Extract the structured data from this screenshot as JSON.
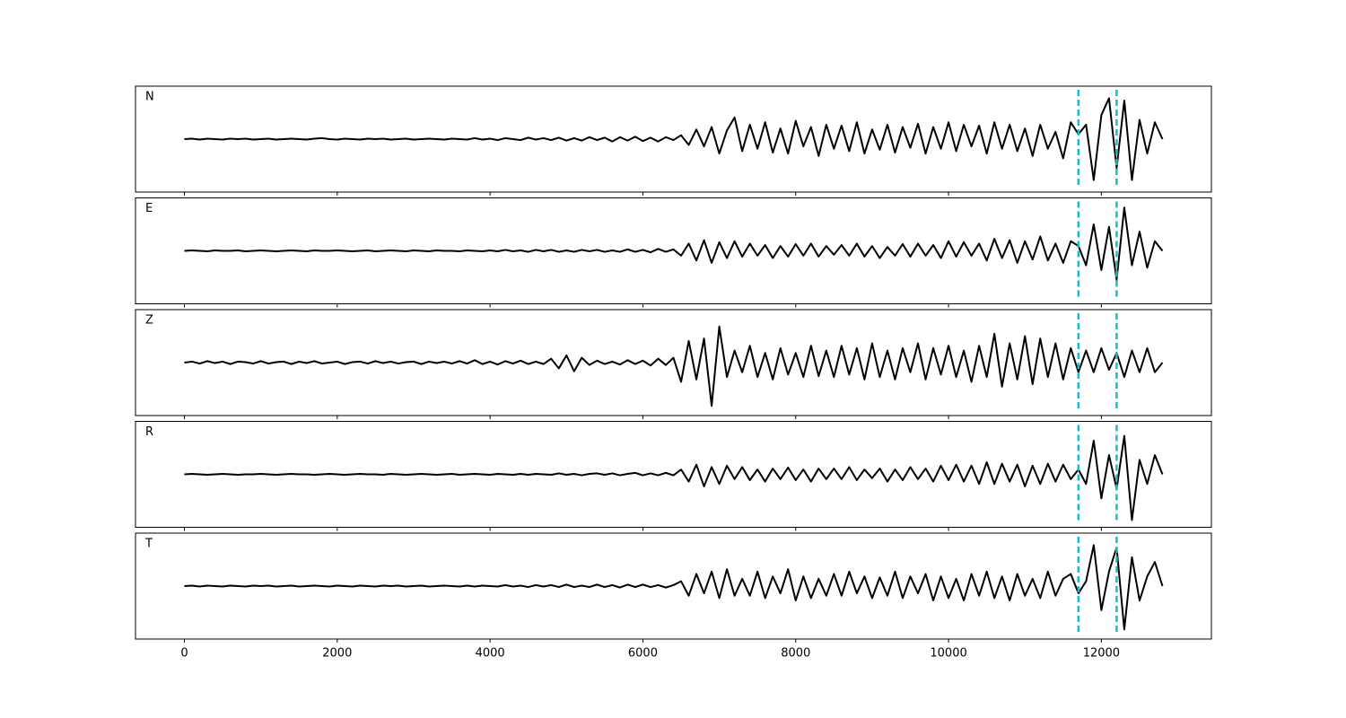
{
  "chart_data": {
    "type": "line",
    "x": [
      0,
      100,
      200,
      300,
      400,
      500,
      600,
      700,
      800,
      900,
      1000,
      1100,
      1200,
      1300,
      1400,
      1500,
      1600,
      1700,
      1800,
      1900,
      2000,
      2100,
      2200,
      2300,
      2400,
      2500,
      2600,
      2700,
      2800,
      2900,
      3000,
      3100,
      3200,
      3300,
      3400,
      3500,
      3600,
      3700,
      3800,
      3900,
      4000,
      4100,
      4200,
      4300,
      4400,
      4500,
      4600,
      4700,
      4800,
      4900,
      5000,
      5100,
      5200,
      5300,
      5400,
      5500,
      5600,
      5700,
      5800,
      5900,
      6000,
      6100,
      6200,
      6300,
      6400,
      6500,
      6600,
      6700,
      6800,
      6900,
      7000,
      7100,
      7200,
      7300,
      7400,
      7500,
      7600,
      7700,
      7800,
      7900,
      8000,
      8100,
      8200,
      8300,
      8400,
      8500,
      8600,
      8700,
      8800,
      8900,
      9000,
      9100,
      9200,
      9300,
      9400,
      9500,
      9600,
      9700,
      9800,
      9900,
      10000,
      10100,
      10200,
      10300,
      10400,
      10500,
      10600,
      10700,
      10800,
      10900,
      11000,
      11100,
      11200,
      11300,
      11400,
      11500,
      11600,
      11700,
      11800,
      11900,
      12000,
      12100,
      12200,
      12300,
      12400,
      12500,
      12600,
      12700,
      12800
    ],
    "series": [
      {
        "name": "N",
        "color": "#000000",
        "values": [
          0,
          0.01,
          -0.01,
          0.01,
          0,
          -0.01,
          0.01,
          0,
          0.01,
          -0.01,
          0,
          0.01,
          -0.01,
          0,
          0.01,
          0,
          -0.01,
          0.01,
          0.02,
          0,
          -0.01,
          0.01,
          0,
          -0.01,
          0.01,
          0,
          0.01,
          -0.01,
          0,
          0.01,
          -0.01,
          0,
          0.01,
          0,
          -0.01,
          0.01,
          0,
          -0.01,
          0.02,
          -0.01,
          0.01,
          -0.02,
          0.02,
          0,
          -0.02,
          0.03,
          -0.01,
          0.02,
          -0.02,
          0.03,
          -0.03,
          0.02,
          -0.03,
          0.04,
          -0.02,
          0.03,
          -0.05,
          0.04,
          -0.03,
          0.05,
          -0.04,
          0.03,
          -0.05,
          0.04,
          -0.02,
          0.08,
          -0.12,
          0.2,
          -0.15,
          0.25,
          -0.3,
          0.18,
          0.45,
          -0.25,
          0.3,
          -0.2,
          0.35,
          -0.28,
          0.22,
          -0.3,
          0.38,
          -0.15,
          0.25,
          -0.35,
          0.3,
          -0.2,
          0.28,
          -0.25,
          0.35,
          -0.3,
          0.2,
          -0.22,
          0.3,
          -0.28,
          0.25,
          -0.18,
          0.32,
          -0.3,
          0.25,
          -0.2,
          0.35,
          -0.25,
          0.3,
          -0.15,
          0.28,
          -0.3,
          0.35,
          -0.2,
          0.3,
          -0.25,
          0.22,
          -0.35,
          0.3,
          -0.2,
          0.15,
          -0.4,
          0.35,
          0.1,
          0.3,
          -0.85,
          0.5,
          0.85,
          -0.6,
          0.8,
          -0.85,
          0.4,
          -0.3,
          0.35,
          0
        ]
      },
      {
        "name": "E",
        "color": "#000000",
        "values": [
          0,
          0.01,
          0,
          -0.01,
          0.01,
          0,
          0,
          0.01,
          -0.01,
          0,
          0.01,
          0,
          -0.01,
          0,
          0.01,
          0,
          -0.01,
          0.01,
          0,
          0,
          0.01,
          0,
          -0.01,
          0,
          0.01,
          -0.01,
          0,
          0.01,
          0,
          -0.01,
          0.01,
          0,
          -0.01,
          0.01,
          0,
          0,
          -0.01,
          0.01,
          0,
          -0.01,
          0.01,
          -0.01,
          0.02,
          -0.01,
          0.01,
          -0.02,
          0.02,
          -0.01,
          0.02,
          -0.02,
          0.01,
          -0.02,
          0.02,
          -0.01,
          0.02,
          -0.02,
          0.01,
          -0.02,
          0.03,
          -0.02,
          0.02,
          -0.03,
          0.04,
          -0.02,
          0.03,
          -0.1,
          0.15,
          -0.2,
          0.22,
          -0.25,
          0.18,
          -0.15,
          0.2,
          -0.12,
          0.15,
          -0.1,
          0.12,
          -0.15,
          0.1,
          -0.12,
          0.14,
          -0.1,
          0.15,
          -0.12,
          0.1,
          -0.08,
          0.12,
          -0.1,
          0.15,
          -0.12,
          0.1,
          -0.15,
          0.08,
          -0.1,
          0.14,
          -0.12,
          0.15,
          -0.1,
          0.12,
          -0.15,
          0.2,
          -0.12,
          0.18,
          -0.1,
          0.15,
          -0.2,
          0.25,
          -0.15,
          0.22,
          -0.25,
          0.2,
          -0.18,
          0.3,
          -0.2,
          0.15,
          -0.25,
          0.2,
          0.1,
          -0.3,
          0.55,
          -0.4,
          0.5,
          -0.6,
          0.9,
          -0.3,
          0.4,
          -0.35,
          0.2,
          0
        ]
      },
      {
        "name": "Z",
        "color": "#000000",
        "values": [
          0,
          0.02,
          -0.02,
          0.03,
          -0.01,
          0.02,
          -0.03,
          0.02,
          0.01,
          -0.02,
          0.03,
          -0.02,
          0.01,
          0.02,
          -0.03,
          0.02,
          -0.01,
          0.03,
          -0.02,
          0,
          0.02,
          -0.03,
          0.01,
          0.02,
          -0.02,
          0.03,
          -0.01,
          0.02,
          -0.02,
          0.01,
          0.02,
          -0.03,
          0.02,
          -0.01,
          0.02,
          -0.02,
          0.03,
          -0.02,
          0.05,
          -0.03,
          0.02,
          -0.04,
          0.03,
          -0.02,
          0.04,
          -0.03,
          0.02,
          -0.03,
          0.08,
          -0.12,
          0.15,
          -0.18,
          0.1,
          -0.05,
          0.04,
          -0.03,
          0.02,
          -0.04,
          0.05,
          -0.03,
          0.04,
          -0.06,
          0.08,
          -0.05,
          0.1,
          -0.4,
          0.45,
          -0.35,
          0.5,
          -0.9,
          0.75,
          -0.3,
          0.25,
          -0.2,
          0.35,
          -0.3,
          0.2,
          -0.35,
          0.3,
          -0.25,
          0.2,
          -0.3,
          0.35,
          -0.28,
          0.25,
          -0.3,
          0.35,
          -0.25,
          0.3,
          -0.35,
          0.4,
          -0.3,
          0.25,
          -0.35,
          0.3,
          -0.2,
          0.4,
          -0.35,
          0.3,
          -0.25,
          0.35,
          -0.3,
          0.25,
          -0.4,
          0.35,
          -0.3,
          0.6,
          -0.5,
          0.4,
          -0.35,
          0.55,
          -0.45,
          0.5,
          -0.3,
          0.4,
          -0.35,
          0.3,
          -0.2,
          0.25,
          -0.2,
          0.3,
          -0.15,
          0.2,
          -0.3,
          0.25,
          -0.2,
          0.3,
          -0.2,
          0
        ]
      },
      {
        "name": "R",
        "color": "#000000",
        "values": [
          0,
          0.01,
          0,
          -0.01,
          0,
          0.01,
          0,
          -0.01,
          0,
          0,
          0.01,
          0,
          -0.01,
          0,
          0.01,
          0,
          0,
          -0.01,
          0,
          0.01,
          0,
          -0.01,
          0,
          0.01,
          0,
          0,
          -0.01,
          0.01,
          0,
          -0.01,
          0,
          0.01,
          0,
          -0.01,
          0,
          0.01,
          -0.01,
          0,
          0.01,
          0,
          -0.01,
          0.01,
          0,
          -0.01,
          0.01,
          -0.01,
          0.01,
          0,
          -0.01,
          0.02,
          -0.01,
          0.01,
          -0.02,
          0.01,
          0.02,
          -0.01,
          0.02,
          -0.02,
          0.01,
          0.03,
          -0.02,
          0.02,
          -0.02,
          0.03,
          -0.02,
          0.1,
          -0.15,
          0.2,
          -0.25,
          0.15,
          -0.2,
          0.18,
          -0.1,
          0.15,
          -0.12,
          0.1,
          -0.15,
          0.12,
          -0.1,
          0.14,
          -0.12,
          0.1,
          -0.15,
          0.12,
          -0.1,
          0.12,
          -0.1,
          0.15,
          -0.12,
          0.1,
          -0.08,
          0.12,
          -0.15,
          0.1,
          -0.12,
          0.15,
          -0.1,
          0.12,
          -0.15,
          0.18,
          -0.12,
          0.2,
          -0.15,
          0.18,
          -0.2,
          0.25,
          -0.2,
          0.22,
          -0.15,
          0.2,
          -0.25,
          0.18,
          -0.2,
          0.22,
          -0.15,
          0.2,
          -0.1,
          0.1,
          -0.2,
          0.7,
          -0.5,
          0.4,
          -0.3,
          0.8,
          -0.95,
          0.3,
          -0.2,
          0.4,
          0
        ]
      },
      {
        "name": "T",
        "color": "#000000",
        "values": [
          0,
          0.01,
          -0.01,
          0.01,
          0,
          -0.01,
          0.01,
          0,
          -0.01,
          0.01,
          0,
          0.01,
          -0.01,
          0,
          0.01,
          -0.01,
          0,
          0.01,
          0,
          -0.01,
          0.01,
          0,
          -0.01,
          0.01,
          0,
          -0.01,
          0.01,
          0,
          0.01,
          -0.01,
          0,
          0.01,
          -0.01,
          0,
          0.01,
          0,
          -0.01,
          0.01,
          -0.01,
          0.01,
          0,
          -0.01,
          0.02,
          -0.01,
          0.01,
          -0.02,
          0.02,
          -0.01,
          0.02,
          -0.02,
          0.03,
          -0.02,
          0.01,
          -0.02,
          0.03,
          -0.02,
          0.02,
          -0.03,
          0.03,
          -0.02,
          0.03,
          -0.02,
          0.02,
          -0.03,
          0.02,
          0.1,
          -0.2,
          0.25,
          -0.15,
          0.3,
          -0.25,
          0.35,
          -0.2,
          0.15,
          -0.2,
          0.3,
          -0.25,
          0.2,
          -0.15,
          0.35,
          -0.3,
          0.2,
          -0.25,
          0.15,
          -0.2,
          0.25,
          -0.2,
          0.3,
          -0.15,
          0.2,
          -0.25,
          0.18,
          -0.2,
          0.3,
          -0.25,
          0.2,
          -0.15,
          0.25,
          -0.3,
          0.2,
          -0.25,
          0.15,
          -0.3,
          0.25,
          -0.2,
          0.3,
          -0.25,
          0.2,
          -0.3,
          0.25,
          -0.2,
          0.15,
          -0.25,
          0.3,
          -0.2,
          0.15,
          0.25,
          -0.15,
          0.1,
          0.85,
          -0.5,
          0.3,
          0.8,
          -0.9,
          0.6,
          -0.3,
          0.2,
          0.5,
          0
        ]
      }
    ],
    "vlines": [
      11700,
      12200
    ],
    "vline_color": "#17becf",
    "xlim": [
      -640,
      13440
    ],
    "xticks": [
      0,
      2000,
      4000,
      6000,
      8000,
      10000,
      12000
    ],
    "ylim": [
      -1.1,
      1.1
    ]
  }
}
